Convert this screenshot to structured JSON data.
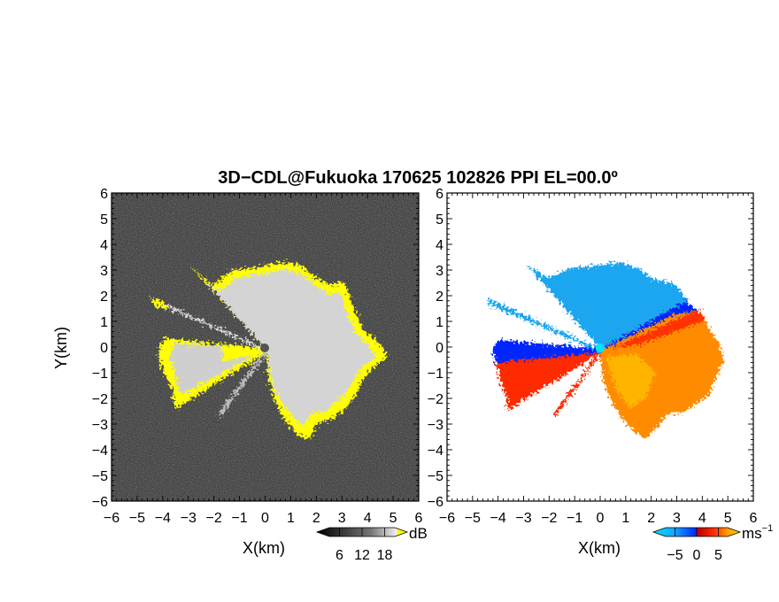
{
  "figure": {
    "title": "3D−CDL@Fukuoka 170625 102826 PPI EL=00.0º"
  },
  "chart_data": [
    {
      "type": "heatmap",
      "panel": "left",
      "quantity_unit": "dB",
      "xlabel": "X(km)",
      "ylabel": "Y(km)",
      "xlim": [
        -6,
        6
      ],
      "ylim": [
        -6,
        6
      ],
      "xticks": [
        "−6",
        "−5",
        "−4",
        "−3",
        "−2",
        "−1",
        "0",
        "1",
        "2",
        "3",
        "4",
        "5",
        "6"
      ],
      "yticks": [
        "−6",
        "−5",
        "−4",
        "−3",
        "−2",
        "−1",
        "0",
        "1",
        "2",
        "3",
        "4",
        "5",
        "6"
      ],
      "background": "noise (dark gray)",
      "colorbar": {
        "ticks": [
          "6",
          "12",
          "18"
        ],
        "unit": "dB",
        "colors": [
          "#000000",
          "#303030",
          "#606060",
          "#909090",
          "#c0c0c0",
          "#e8e8e8",
          "#ffff00"
        ]
      },
      "colors": {
        "echo": "#d8d8d8",
        "strong": "#ffff00",
        "noise": "#2a2a2a"
      }
    },
    {
      "type": "heatmap",
      "panel": "right",
      "quantity_unit": "ms−1",
      "xlabel": "X(km)",
      "xlim": [
        -6,
        6
      ],
      "ylim": [
        -6,
        6
      ],
      "xticks": [
        "−6",
        "−5",
        "−4",
        "−3",
        "−2",
        "−1",
        "0",
        "1",
        "2",
        "3",
        "4",
        "5",
        "6"
      ],
      "yticks": [
        "−6",
        "−5",
        "−4",
        "−3",
        "−2",
        "−1",
        "0",
        "1",
        "2",
        "3",
        "4",
        "5",
        "6"
      ],
      "colorbar": {
        "ticks": [
          "−5",
          "0",
          "5"
        ],
        "unit": "ms",
        "unit_sup": "−1",
        "colors": [
          "#00e5ff",
          "#1aa0ff",
          "#0030ff",
          "#c00000",
          "#ff3000",
          "#ff9900",
          "#ffd800"
        ]
      },
      "colors": {
        "approach": "#1aa8f0",
        "approach_strong": "#0028ff",
        "recede": "#ff8a00",
        "recede_strong": "#ff2a00"
      }
    }
  ]
}
